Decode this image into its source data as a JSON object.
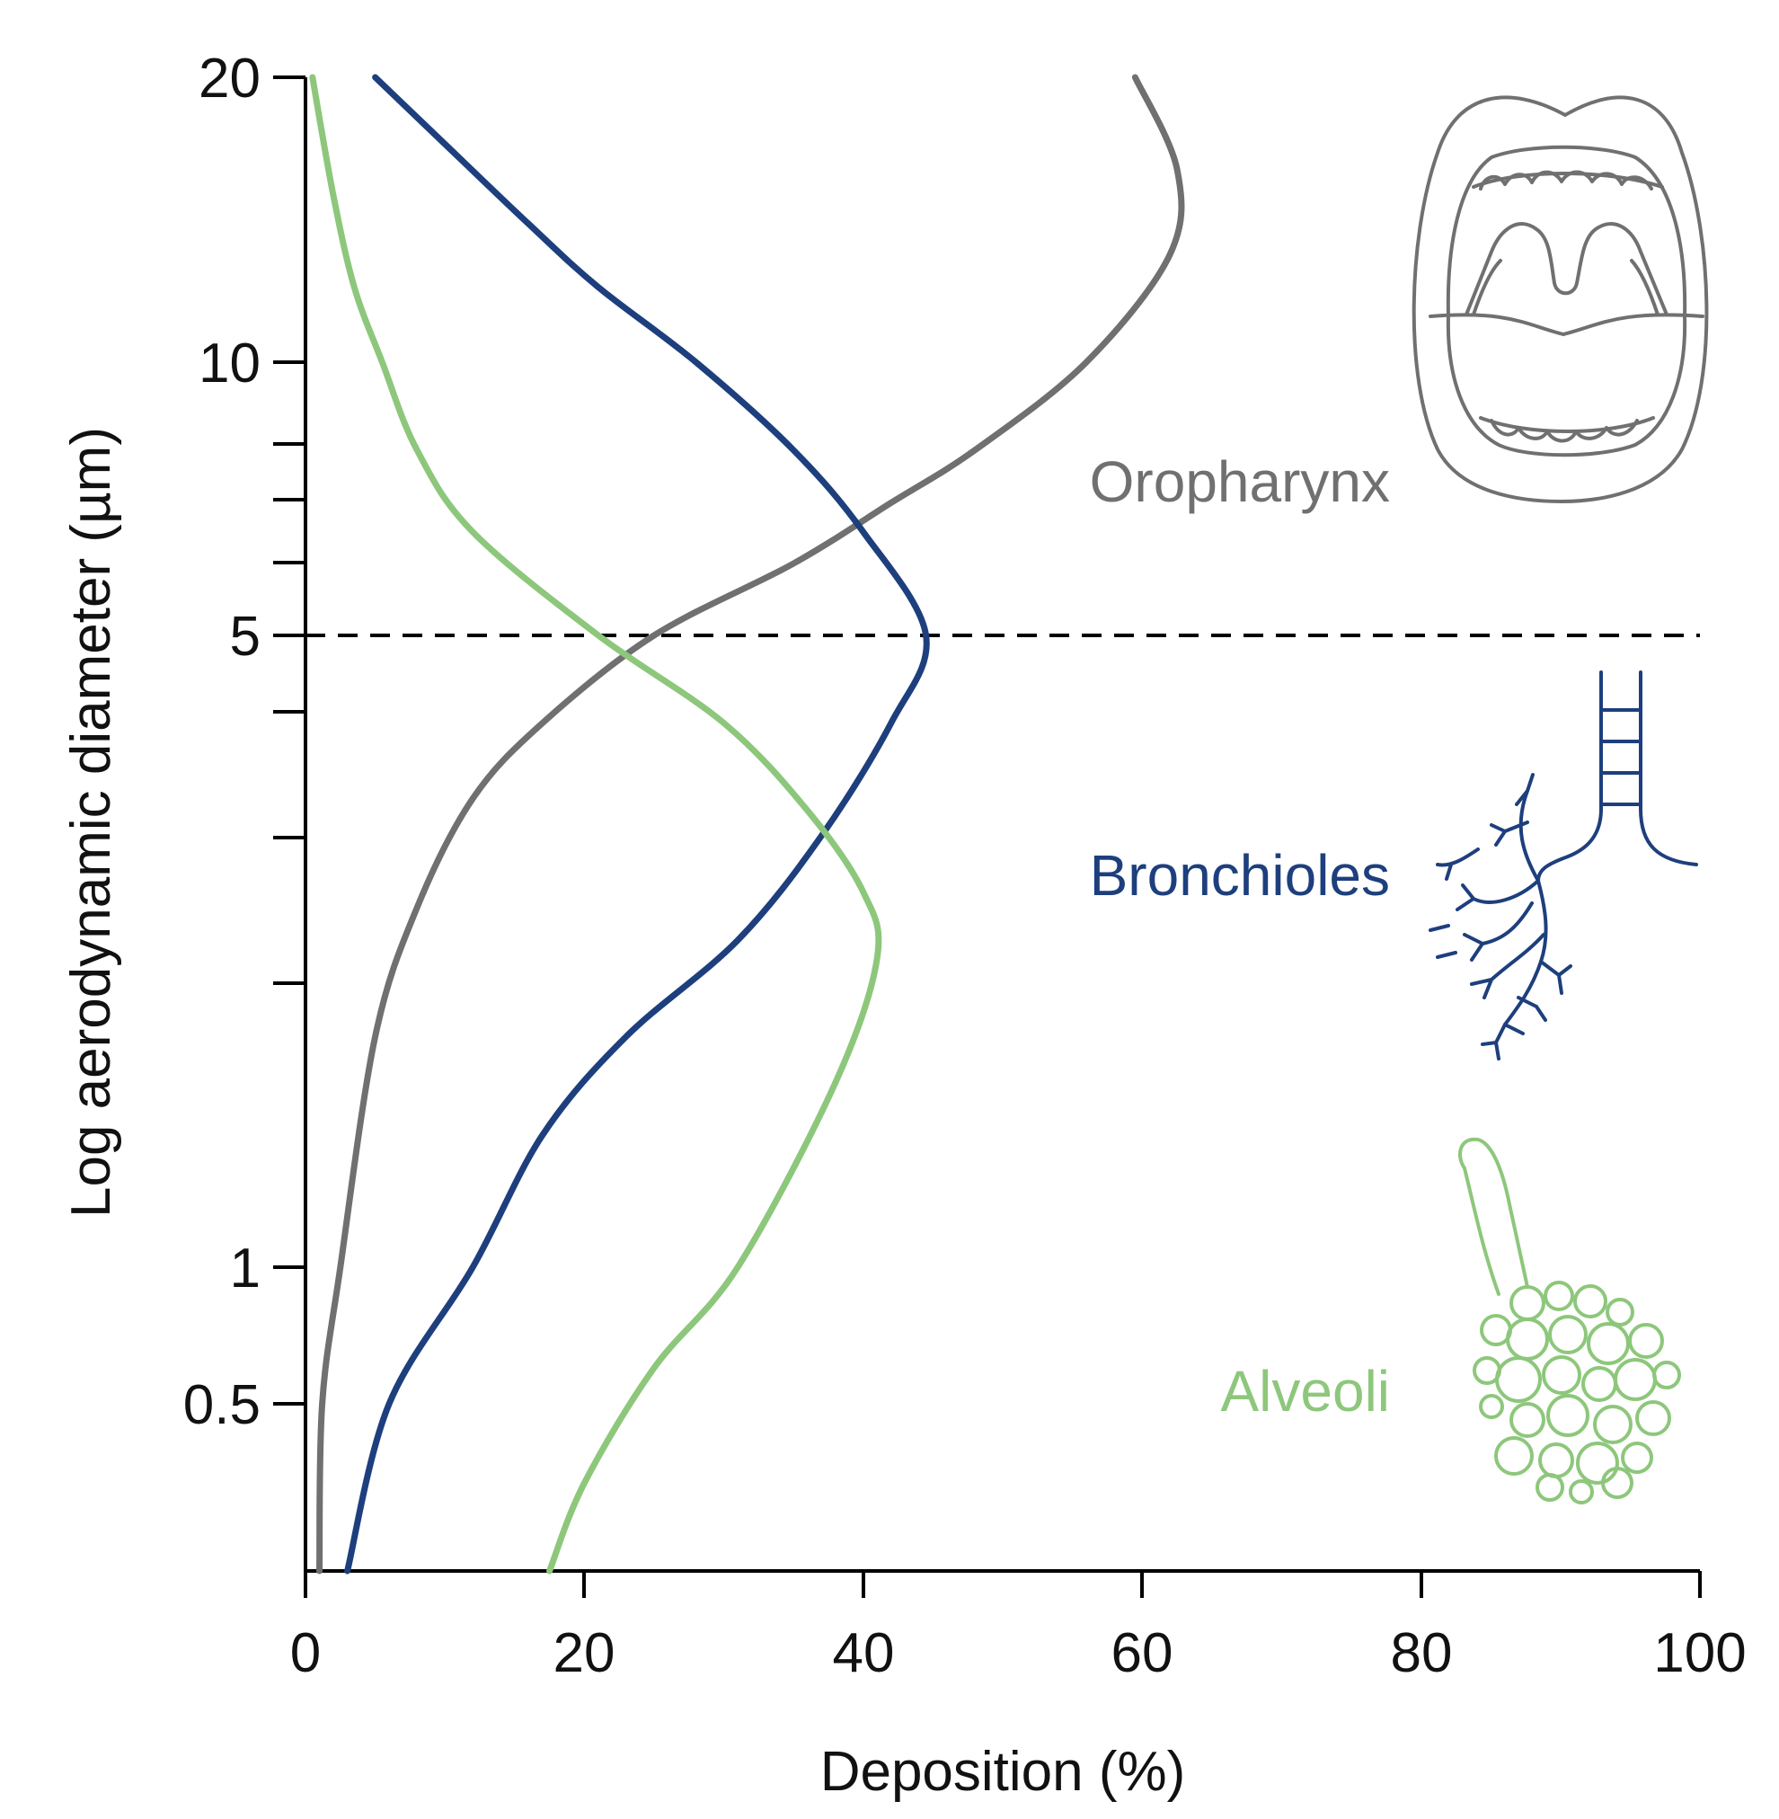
{
  "chart_data": {
    "type": "line",
    "orientation": "y-vertical-log",
    "xlabel": "Deposition (%)",
    "ylabel": "Log aerodynamic diameter (µm)",
    "xlim": [
      0,
      100
    ],
    "ylim": [
      0.17,
      20
    ],
    "x_ticks": [
      "0",
      "20",
      "40",
      "60",
      "80",
      "100"
    ],
    "x_tick_values": [
      0,
      20,
      40,
      60,
      80,
      100
    ],
    "y_ticks": [
      "20",
      "10",
      "5",
      "1",
      "0.5"
    ],
    "y_tick_values": [
      20,
      10,
      5,
      1,
      0.5
    ],
    "y_minor_ticks": [
      8,
      7,
      6,
      4,
      3,
      2
    ],
    "reference_line": {
      "y": 5,
      "style": "dashed"
    },
    "series": [
      {
        "name": "Oropharynx",
        "color": "#707070",
        "points": [
          {
            "d": 20,
            "dep": 59.5
          },
          {
            "d": 16,
            "dep": 62.5
          },
          {
            "d": 13,
            "dep": 62
          },
          {
            "d": 10,
            "dep": 56
          },
          {
            "d": 8,
            "dep": 48
          },
          {
            "d": 7,
            "dep": 42
          },
          {
            "d": 6,
            "dep": 35
          },
          {
            "d": 5,
            "dep": 25
          },
          {
            "d": 4,
            "dep": 17
          },
          {
            "d": 3.3,
            "dep": 12
          },
          {
            "d": 2.5,
            "dep": 8
          },
          {
            "d": 1.8,
            "dep": 5
          },
          {
            "d": 1,
            "dep": 2.5
          },
          {
            "d": 0.5,
            "dep": 1.2
          },
          {
            "d": 0.17,
            "dep": 1
          }
        ]
      },
      {
        "name": "Bronchioles",
        "color": "#1e3f7d",
        "points": [
          {
            "d": 20,
            "dep": 5
          },
          {
            "d": 17,
            "dep": 10
          },
          {
            "d": 14,
            "dep": 16
          },
          {
            "d": 12,
            "dep": 21
          },
          {
            "d": 10,
            "dep": 28
          },
          {
            "d": 8,
            "dep": 35
          },
          {
            "d": 6.5,
            "dep": 40
          },
          {
            "d": 5,
            "dep": 44.5
          },
          {
            "d": 4,
            "dep": 42
          },
          {
            "d": 3,
            "dep": 37
          },
          {
            "d": 2.3,
            "dep": 31
          },
          {
            "d": 1.8,
            "dep": 23
          },
          {
            "d": 1.4,
            "dep": 17
          },
          {
            "d": 1,
            "dep": 12
          },
          {
            "d": 0.5,
            "dep": 6
          },
          {
            "d": 0.17,
            "dep": 3
          }
        ]
      },
      {
        "name": "Alveoli",
        "color": "#8dc77b",
        "points": [
          {
            "d": 20,
            "dep": 0.5
          },
          {
            "d": 15,
            "dep": 2
          },
          {
            "d": 12,
            "dep": 3.5
          },
          {
            "d": 10,
            "dep": 5.5
          },
          {
            "d": 8,
            "dep": 8
          },
          {
            "d": 6.5,
            "dep": 12
          },
          {
            "d": 5,
            "dep": 21
          },
          {
            "d": 4,
            "dep": 30
          },
          {
            "d": 3.2,
            "dep": 36
          },
          {
            "d": 2.6,
            "dep": 40
          },
          {
            "d": 2.2,
            "dep": 41
          },
          {
            "d": 1.6,
            "dep": 38
          },
          {
            "d": 1,
            "dep": 31
          },
          {
            "d": 0.6,
            "dep": 25
          },
          {
            "d": 0.3,
            "dep": 20
          },
          {
            "d": 0.17,
            "dep": 17.5
          }
        ]
      }
    ],
    "annotations": {
      "oropharynx": "Oropharynx",
      "bronchioles": "Bronchioles",
      "alveoli": "Alveoli"
    }
  }
}
